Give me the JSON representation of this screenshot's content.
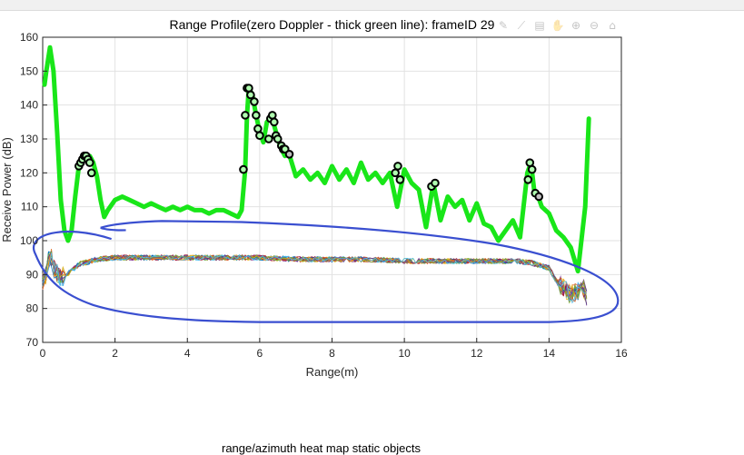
{
  "window": {
    "second_plot_title": "range/azimuth heat map static objects"
  },
  "toolbar": {
    "icons": [
      "brush-icon",
      "data-cursor-icon",
      "save-icon",
      "pan-icon",
      "zoom-in-icon",
      "zoom-out-icon",
      "home-icon"
    ]
  },
  "colors": {
    "green_line": "#19e619",
    "annotation_blue": "#3a4fd0",
    "marker_edge": "#000000",
    "marker_face": "#b0ffb0",
    "grid": "#e2e2e2",
    "axis": "#262626"
  },
  "chart_data": {
    "type": "line",
    "title": "Range Profile(zero Doppler - thick green line): frameID 29",
    "xlabel": "Range(m)",
    "ylabel": "Receive Power (dB)",
    "xlim": [
      0,
      16
    ],
    "ylim": [
      70,
      160
    ],
    "xticks": [
      "0",
      "2",
      "4",
      "6",
      "8",
      "10",
      "12",
      "14",
      "16"
    ],
    "yticks": [
      "70",
      "80",
      "90",
      "100",
      "110",
      "120",
      "130",
      "140",
      "150",
      "160"
    ],
    "grid": true,
    "series": [
      {
        "kind": "zero-doppler-range-profile",
        "style": "thick-green",
        "x": [
          0.05,
          0.1,
          0.2,
          0.3,
          0.4,
          0.5,
          0.6,
          0.7,
          0.8,
          0.9,
          1.0,
          1.1,
          1.2,
          1.3,
          1.4,
          1.5,
          1.6,
          1.7,
          1.8,
          2.0,
          2.2,
          2.4,
          2.6,
          2.8,
          3.0,
          3.2,
          3.4,
          3.6,
          3.8,
          4.0,
          4.2,
          4.4,
          4.6,
          4.8,
          5.0,
          5.2,
          5.4,
          5.5,
          5.6,
          5.65,
          5.7,
          5.8,
          5.9,
          6.0,
          6.1,
          6.2,
          6.3,
          6.4,
          6.5,
          6.6,
          6.7,
          6.8,
          7.0,
          7.2,
          7.4,
          7.6,
          7.8,
          8.0,
          8.2,
          8.4,
          8.6,
          8.8,
          9.0,
          9.2,
          9.4,
          9.6,
          9.8,
          10.0,
          10.2,
          10.4,
          10.6,
          10.8,
          11.0,
          11.2,
          11.4,
          11.6,
          11.8,
          12.0,
          12.2,
          12.4,
          12.6,
          12.8,
          13.0,
          13.2,
          13.4,
          13.5,
          13.6,
          13.7,
          13.8,
          14.0,
          14.2,
          14.4,
          14.6,
          14.8,
          15.0,
          15.1
        ],
        "values": [
          146,
          150,
          157,
          150,
          132,
          112,
          103,
          100,
          103,
          113,
          122,
          124,
          125,
          125,
          123,
          119,
          112,
          107,
          109,
          112,
          113,
          112,
          111,
          110,
          111,
          110,
          109,
          110,
          109,
          110,
          109,
          109,
          108,
          109,
          109,
          108,
          107,
          109,
          121,
          137,
          145,
          143,
          137,
          132,
          129,
          135,
          136,
          134,
          130,
          127,
          125,
          126,
          119,
          121,
          118,
          120,
          117,
          122,
          118,
          121,
          117,
          123,
          118,
          120,
          117,
          120,
          110,
          121,
          117,
          115,
          104,
          117,
          106,
          113,
          110,
          112,
          106,
          111,
          105,
          104,
          100,
          103,
          106,
          101,
          120,
          123,
          114,
          113,
          110,
          108,
          103,
          101,
          98,
          91,
          110,
          136
        ]
      }
    ],
    "points": {
      "kind": "detected-peaks",
      "marker": "circle",
      "x": [
        1.0,
        1.05,
        1.1,
        1.15,
        1.2,
        1.25,
        1.3,
        1.35,
        5.55,
        5.6,
        5.65,
        5.7,
        5.75,
        5.85,
        5.9,
        5.95,
        6.0,
        6.25,
        6.3,
        6.35,
        6.4,
        6.45,
        6.5,
        6.6,
        6.65,
        6.7,
        6.82,
        9.75,
        9.82,
        9.88,
        10.75,
        10.85,
        13.42,
        13.47,
        13.53,
        13.62,
        13.72
      ],
      "y": [
        122,
        123,
        124,
        125,
        125,
        124,
        123,
        120,
        121,
        137,
        145,
        145,
        143,
        141,
        137,
        133,
        131,
        130,
        136,
        137,
        135,
        131,
        130,
        128,
        127,
        127,
        125.5,
        120,
        122,
        118,
        116,
        117,
        118,
        123,
        121,
        114,
        113
      ]
    },
    "band": {
      "kind": "multi-series-noise-floor",
      "count": 20,
      "x": [
        0,
        0.1,
        0.2,
        0.3,
        0.5,
        0.8,
        1.0,
        1.5,
        2.0,
        3.0,
        4.0,
        5.0,
        6.0,
        7.0,
        8.0,
        9.0,
        10.0,
        11.0,
        12.0,
        13.0,
        13.5,
        14.0,
        14.2,
        14.4,
        14.6,
        14.8,
        15.0,
        15.1
      ],
      "values": [
        88,
        90,
        97,
        92,
        89,
        91,
        93,
        94.5,
        95,
        95,
        95,
        95,
        95,
        94.5,
        94.5,
        94.5,
        94,
        94,
        94,
        94,
        93.5,
        92,
        88,
        86,
        84,
        85,
        86,
        80
      ],
      "spread": 1.6
    },
    "annotation": {
      "kind": "hand-drawn-ellipse",
      "style": "blue-freehand"
    }
  }
}
